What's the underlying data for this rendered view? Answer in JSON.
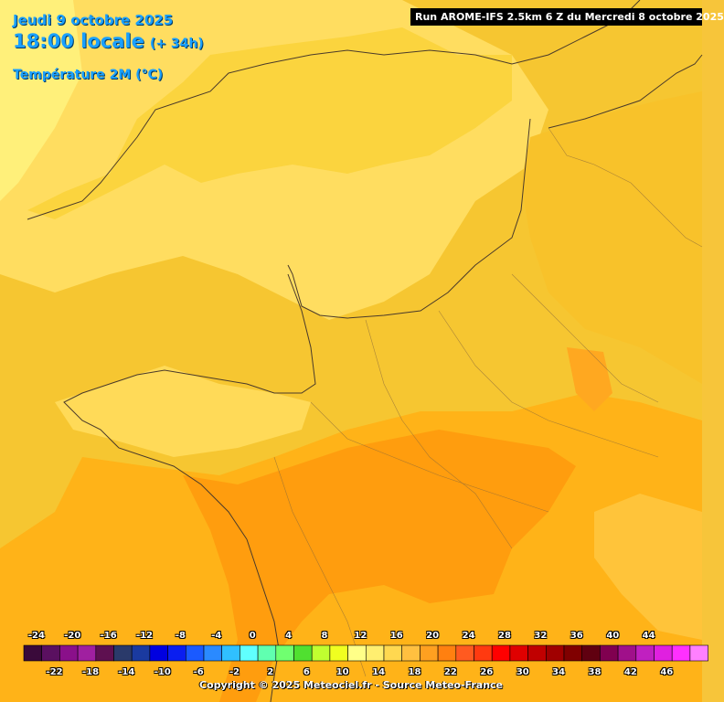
{
  "header": {
    "date": "Jeudi 9 octobre 2025",
    "time": "18:00 locale",
    "offset": "(+ 34h)",
    "variable": "Température 2M (°C)"
  },
  "run_info": "Run AROME-IFS 2.5km 6 Z du Mercredi 8 octobre 2025",
  "copyright": "Copyright © 2025 Meteociel.fr - Source Meteo-France",
  "legend": {
    "top_labels": [
      "-24",
      "-20",
      "-16",
      "-12",
      "-8",
      "-4",
      "0",
      "4",
      "8",
      "12",
      "16",
      "20",
      "24",
      "28",
      "32",
      "36",
      "40",
      "44"
    ],
    "bottom_labels": [
      "-22",
      "-18",
      "-14",
      "-10",
      "-6",
      "-2",
      "2",
      "6",
      "10",
      "14",
      "18",
      "22",
      "26",
      "30",
      "34",
      "38",
      "42",
      "46"
    ],
    "colors": [
      "#3a0a3a",
      "#5a1060",
      "#8a108a",
      "#a020a0",
      "#5e1050",
      "#2a3a6a",
      "#1a3aa0",
      "#0000e0",
      "#0a1ef0",
      "#1a5aff",
      "#2a8aff",
      "#30c0ff",
      "#60ffff",
      "#60ffb0",
      "#70ff70",
      "#50e030",
      "#c0ff30",
      "#f0ff20",
      "#ffff88",
      "#ffef70",
      "#ffd850",
      "#ffc040",
      "#ffa020",
      "#ff8010",
      "#ff5a20",
      "#ff3a10",
      "#ff0000",
      "#e00000",
      "#c00000",
      "#a00000",
      "#800000",
      "#600010",
      "#800050",
      "#a0108a",
      "#c020c0",
      "#e020e0",
      "#ff30ff",
      "#ff80ff"
    ]
  },
  "colors": {
    "sea": "#f7c53a",
    "temp_14_16": "#ffde63",
    "temp_16_18": "#f9c82a",
    "temp_18_20": "#ffad10",
    "temp_20_22": "#ff9e10",
    "title_color": "#1aa0ff"
  }
}
